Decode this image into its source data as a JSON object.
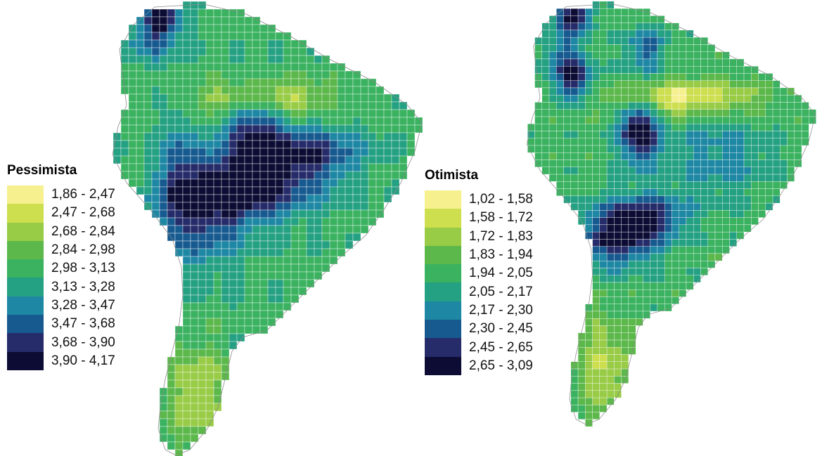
{
  "palette": [
    "#f6f08e",
    "#cdde4e",
    "#98cb46",
    "#5cb84b",
    "#3ab260",
    "#24a082",
    "#1d87a4",
    "#175a90",
    "#262c6a",
    "#0c0c34"
  ],
  "maps": [
    {
      "title": "Pessimista",
      "legend": [
        "1,86 - 2,47",
        "2,47 - 2,68",
        "2,68 - 2,84",
        "2,84 - 2,98",
        "2,98 - 3,13",
        "3,13 - 3,28",
        "3,28 - 3,47",
        "3,47 - 3,68",
        "3,68 - 3,90",
        "3,90 - 4,17"
      ]
    },
    {
      "title": "Otimista",
      "legend": [
        "1,02 - 1,58",
        "1,58 - 1,72",
        "1,72 - 1,83",
        "1,83 - 1,94",
        "1,94 - 2,05",
        "2,05 - 2,17",
        "2,17 - 2,30",
        "2,30 - 2,45",
        "2,45 - 2,65",
        "2,65 - 3,09"
      ]
    }
  ]
}
